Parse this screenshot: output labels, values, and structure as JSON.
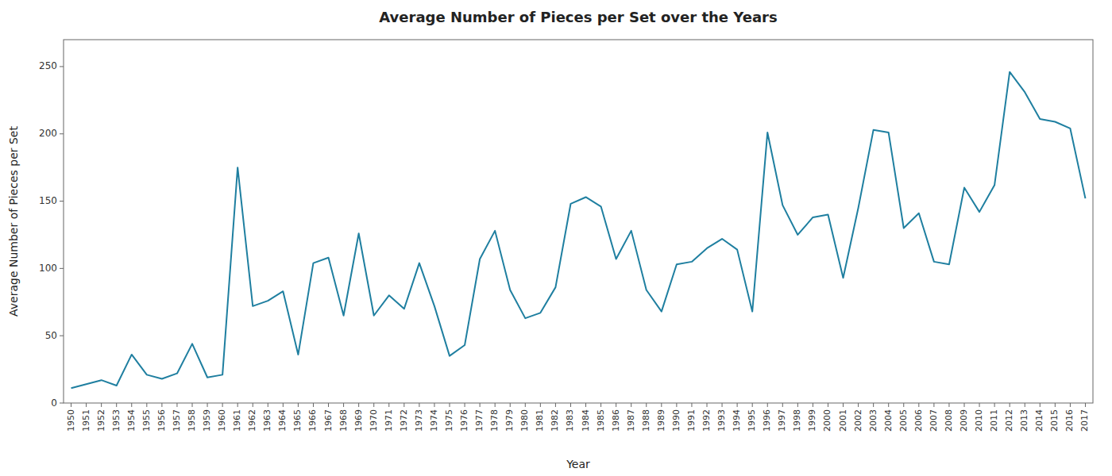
{
  "chart_data": {
    "type": "line",
    "title": "Average Number of Pieces per Set over the Years",
    "xlabel": "Year",
    "ylabel": "Average Number of Pieces per Set",
    "color": "#1f7fa0",
    "x": [
      1950,
      1951,
      1952,
      1953,
      1954,
      1955,
      1956,
      1957,
      1958,
      1959,
      1960,
      1961,
      1962,
      1963,
      1964,
      1965,
      1966,
      1967,
      1968,
      1969,
      1970,
      1971,
      1972,
      1973,
      1974,
      1975,
      1976,
      1977,
      1978,
      1979,
      1980,
      1981,
      1982,
      1983,
      1984,
      1985,
      1986,
      1987,
      1988,
      1989,
      1990,
      1991,
      1992,
      1993,
      1994,
      1995,
      1996,
      1997,
      1998,
      1999,
      2000,
      2001,
      2002,
      2003,
      2004,
      2005,
      2006,
      2007,
      2008,
      2009,
      2010,
      2011,
      2012,
      2013,
      2014,
      2015,
      2016,
      2017
    ],
    "values": [
      11,
      14,
      17,
      13,
      36,
      21,
      18,
      22,
      44,
      19,
      21,
      175,
      72,
      76,
      83,
      36,
      104,
      108,
      65,
      126,
      65,
      80,
      70,
      104,
      72,
      35,
      43,
      107,
      128,
      84,
      63,
      67,
      86,
      148,
      153,
      146,
      107,
      128,
      84,
      68,
      103,
      105,
      115,
      122,
      114,
      68,
      201,
      147,
      125,
      138,
      140,
      93,
      145,
      203,
      201,
      130,
      141,
      105,
      103,
      160,
      142,
      162,
      246,
      231,
      211,
      209,
      204,
      152
    ],
    "xlim": [
      1949.5,
      2017.5
    ],
    "xticks": [
      1950,
      1951,
      1952,
      1953,
      1954,
      1955,
      1956,
      1957,
      1958,
      1959,
      1960,
      1961,
      1962,
      1963,
      1964,
      1965,
      1966,
      1967,
      1968,
      1969,
      1970,
      1971,
      1972,
      1973,
      1974,
      1975,
      1976,
      1977,
      1978,
      1979,
      1980,
      1981,
      1982,
      1983,
      1984,
      1985,
      1986,
      1987,
      1988,
      1989,
      1990,
      1991,
      1992,
      1993,
      1994,
      1995,
      1996,
      1997,
      1998,
      1999,
      2000,
      2001,
      2002,
      2003,
      2004,
      2005,
      2006,
      2007,
      2008,
      2009,
      2010,
      2011,
      2012,
      2013,
      2014,
      2015,
      2016,
      2017
    ],
    "ylim": [
      0,
      270
    ],
    "yticks": [
      0,
      50,
      100,
      150,
      200,
      250
    ],
    "grid": false
  }
}
